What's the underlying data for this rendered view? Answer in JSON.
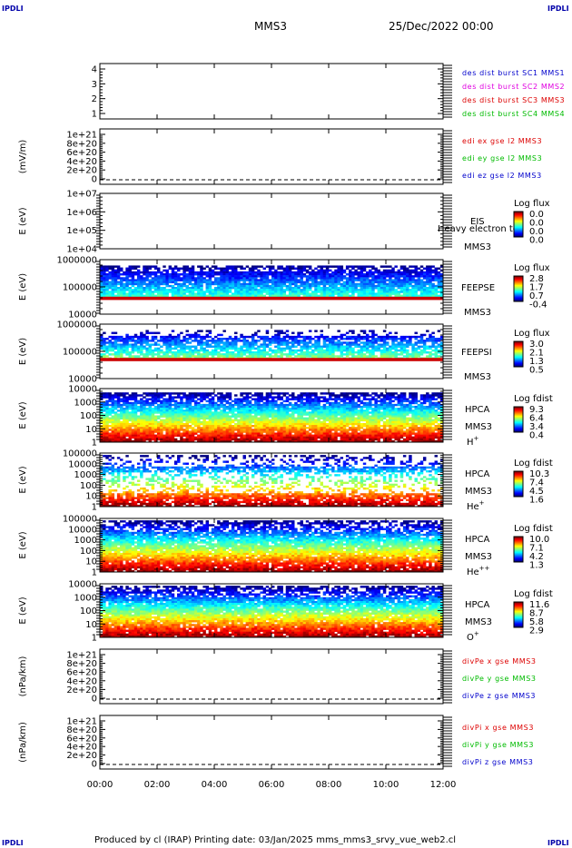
{
  "header": {
    "corner_tag": "IPDLI",
    "title": "MMS3",
    "date": "25/Dec/2022 00:00"
  },
  "footer": {
    "text": "Produced by cl (IRAP)   Printing date: 03/Jan/2025   mms_mms3_srvy_vue_web2.cl"
  },
  "chart_data": {
    "type": "heatmap",
    "x_axis": {
      "range": [
        "00:00",
        "12:00"
      ],
      "tick_labels": [
        "00:00",
        "02:00",
        "04:00",
        "06:00",
        "08:00",
        "10:00",
        "12:00"
      ]
    },
    "panels": [
      {
        "id": "burst",
        "kind": "lines",
        "ylabel": "",
        "ylim": [
          0.5,
          4.5
        ],
        "tick_labels": [
          "4",
          "3",
          "2",
          "1"
        ],
        "legend": [
          {
            "text": "des dist burst SC1 MMS1",
            "color": "#0000cc"
          },
          {
            "text": "des dist burst SC2 MMS2",
            "color": "#e000e0"
          },
          {
            "text": "des dist burst SC3 MMS3",
            "color": "#dd0000"
          },
          {
            "text": "des dist burst SC4 MMS4",
            "color": "#00bb00"
          }
        ]
      },
      {
        "id": "edi",
        "kind": "lines",
        "ylabel": "(mV/m)",
        "ylim": [
          0,
          1e+21
        ],
        "tick_labels": [
          "1e+21",
          "8e+20",
          "6e+20",
          "4e+20",
          "2e+20",
          "0"
        ],
        "legend": [
          {
            "text": "edi ex gse l2 MMS3",
            "color": "#dd0000"
          },
          {
            "text": "edi ey gse l2 MMS3",
            "color": "#00bb00"
          },
          {
            "text": "edi ez gse l2 MMS3",
            "color": "#0000cc"
          }
        ]
      },
      {
        "id": "eis",
        "kind": "spectrogram",
        "ylabel": "E (eV)",
        "tick_labels": [
          "1e+07",
          "1e+06",
          "1e+05",
          "1e+04"
        ],
        "instrument": "EIS",
        "species": "Heavy electron to",
        "spacecraft": "MMS3",
        "colorbar_title": "Log flux",
        "colorbar_ticks": [
          "0.0",
          "0.0",
          "0.0",
          "0.0"
        ]
      },
      {
        "id": "feepse",
        "kind": "spectrogram",
        "ylabel": "E (eV)",
        "tick_labels": [
          "1000000",
          "100000",
          "10000"
        ],
        "instrument": "FEEPSE",
        "spacecraft": "MMS3",
        "colorbar_title": "Log flux",
        "colorbar_ticks": [
          "2.8",
          "1.7",
          "0.7",
          "-0.4"
        ]
      },
      {
        "id": "feepsi",
        "kind": "spectrogram",
        "ylabel": "E (eV)",
        "tick_labels": [
          "1000000",
          "100000",
          "10000"
        ],
        "instrument": "FEEPSI",
        "spacecraft": "MMS3",
        "colorbar_title": "Log flux",
        "colorbar_ticks": [
          "3.0",
          "2.1",
          "1.3",
          "0.5"
        ]
      },
      {
        "id": "hpca-h",
        "kind": "spectrogram",
        "ylabel": "E (eV)",
        "tick_labels": [
          "10000",
          "1000",
          "100",
          "10",
          "1"
        ],
        "instrument": "HPCA",
        "spacecraft": "MMS3",
        "species": "H",
        "species_sup": "+",
        "colorbar_title": "Log fdist",
        "colorbar_ticks": [
          "9.3",
          "6.4",
          "3.4",
          "0.4"
        ]
      },
      {
        "id": "hpca-he1",
        "kind": "spectrogram",
        "ylabel": "E (eV)",
        "tick_labels": [
          "100000",
          "10000",
          "1000",
          "100",
          "10",
          "1"
        ],
        "instrument": "HPCA",
        "spacecraft": "MMS3",
        "species": "He",
        "species_sup": "+",
        "colorbar_title": "Log fdist",
        "colorbar_ticks": [
          "10.3",
          "7.4",
          "4.5",
          "1.6"
        ]
      },
      {
        "id": "hpca-he2",
        "kind": "spectrogram",
        "ylabel": "E (eV)",
        "tick_labels": [
          "100000",
          "10000",
          "1000",
          "100",
          "10",
          "1"
        ],
        "instrument": "HPCA",
        "spacecraft": "MMS3",
        "species": "He",
        "species_sup": "++",
        "colorbar_title": "Log fdist",
        "colorbar_ticks": [
          "10.0",
          "7.1",
          "4.2",
          "1.3"
        ]
      },
      {
        "id": "hpca-o",
        "kind": "spectrogram",
        "ylabel": "E (eV)",
        "tick_labels": [
          "10000",
          "1000",
          "100",
          "10",
          "1"
        ],
        "instrument": "HPCA",
        "spacecraft": "MMS3",
        "species": "O",
        "species_sup": "+",
        "colorbar_title": "Log fdist",
        "colorbar_ticks": [
          "11.6",
          "8.7",
          "5.8",
          "2.9"
        ]
      },
      {
        "id": "divpe",
        "kind": "lines",
        "ylabel": "(nPa/km)",
        "ylim": [
          0,
          1e+21
        ],
        "tick_labels": [
          "1e+21",
          "8e+20",
          "6e+20",
          "4e+20",
          "2e+20",
          "0"
        ],
        "legend": [
          {
            "text": "divPe x gse MMS3",
            "color": "#dd0000"
          },
          {
            "text": "divPe y gse MMS3",
            "color": "#00bb00"
          },
          {
            "text": "divPe z gse MMS3",
            "color": "#0000cc"
          }
        ]
      },
      {
        "id": "divpi",
        "kind": "lines",
        "ylabel": "(nPa/km)",
        "ylim": [
          0,
          1e+21
        ],
        "tick_labels": [
          "1e+21",
          "8e+20",
          "6e+20",
          "4e+20",
          "2e+20",
          "0"
        ],
        "legend": [
          {
            "text": "divPi x gse MMS3",
            "color": "#dd0000"
          },
          {
            "text": "divPi y gse MMS3",
            "color": "#00bb00"
          },
          {
            "text": "divPi z gse MMS3",
            "color": "#0000cc"
          }
        ]
      }
    ]
  }
}
